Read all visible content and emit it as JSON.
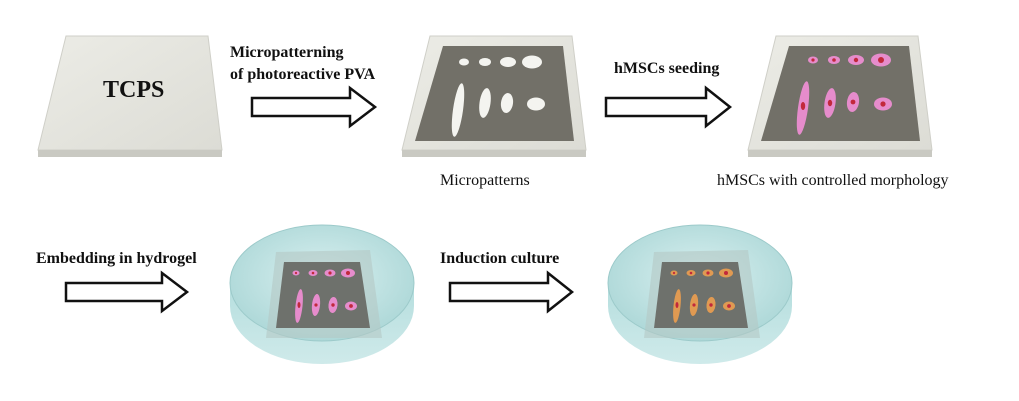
{
  "labels": {
    "tcps": "TCPS",
    "step1_line1": "Micropatterning",
    "step1_line2": "of photoreactive PVA",
    "step2": "hMSCs seeding",
    "step3": "Embedding in hydrogel",
    "step4": "Induction culture"
  },
  "captions": {
    "micropatterns": "Micropatterns",
    "controlled": "hMSCs with controlled morphology"
  },
  "colors": {
    "substrate": "#e6e6e0",
    "pattern_plate": "#727068",
    "cell_pink": "#e68ccc",
    "cell_orange": "#e09a52",
    "nucleus": "#c2283c",
    "hydrogel": "#bfe3e3"
  }
}
